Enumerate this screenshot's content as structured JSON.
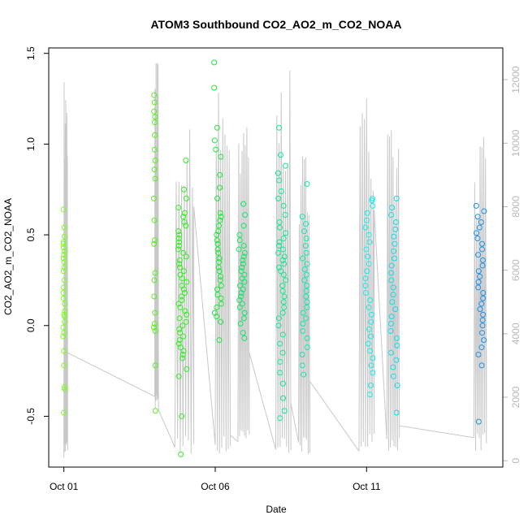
{
  "chart_data": {
    "type": "scatter",
    "title": "ATOM3 Southbound CO2_AO2_m_CO2_NOAA",
    "xlabel": "Date",
    "ylabel": "CO2_AO2_m_CO2_NOAA",
    "xlim": [
      "2016-09-30T12:00",
      "2016-10-15T12:00"
    ],
    "ylim": [
      -0.78,
      1.53
    ],
    "y_ticks": [
      -0.5,
      0.0,
      0.5,
      1.0,
      1.5
    ],
    "x_ticks": [
      {
        "date": "2016-10-01",
        "label": "Oct 01"
      },
      {
        "date": "2016-10-06",
        "label": "Oct 06"
      },
      {
        "date": "2016-10-11",
        "label": "Oct 11"
      }
    ],
    "y2_ticks": [
      0,
      2000,
      4000,
      6000,
      8000,
      10000,
      12000
    ],
    "y2lim": [
      -200,
      13000
    ],
    "y2_color": "#b8b8b8",
    "grid": false,
    "series": [
      {
        "color": "#7cfc20",
        "x_center": "2016-10-01T00:00",
        "spread": 0.06,
        "y": [
          0.64,
          0.54,
          0.49,
          0.46,
          0.45,
          0.43,
          0.41,
          0.39,
          0.37,
          0.35,
          0.32,
          0.3,
          0.25,
          0.21,
          0.18,
          0.15,
          0.12,
          0.08,
          0.06,
          0.05,
          0.02,
          -0.01,
          -0.04,
          -0.06,
          -0.14,
          -0.22,
          -0.34,
          -0.35,
          -0.48
        ]
      },
      {
        "color": "#56f01e",
        "x_center": "2016-10-04T00:00",
        "spread": 0.06,
        "y": [
          1.27,
          1.23,
          1.18,
          1.15,
          1.12,
          1.05,
          0.97,
          0.91,
          0.86,
          0.81,
          0.7,
          0.58,
          0.47,
          0.45,
          0.29,
          0.25,
          0.16,
          0.07,
          0.01,
          -0.01,
          -0.03,
          -0.22,
          -0.47
        ]
      },
      {
        "color": "#33ee22",
        "x_center": "2016-10-04T22:00",
        "spread": 0.28,
        "y": [
          0.91,
          0.75,
          0.7,
          0.65,
          0.62,
          0.6,
          0.57,
          0.55,
          0.52,
          0.5,
          0.48,
          0.46,
          0.44,
          0.42,
          0.4,
          0.38,
          0.36,
          0.34,
          0.32,
          0.3,
          0.28,
          0.26,
          0.24,
          0.22,
          0.2,
          0.18,
          0.16,
          0.14,
          0.12,
          0.1,
          0.08,
          0.06,
          0.04,
          0.02,
          0.0,
          -0.02,
          -0.04,
          -0.06,
          -0.08,
          -0.1,
          -0.12,
          -0.14,
          -0.16,
          -0.18,
          -0.24,
          -0.28,
          -0.5,
          -0.71
        ]
      },
      {
        "color": "#1ee83c",
        "x_center": "2016-10-06T02:00",
        "spread": 0.24,
        "y": [
          1.45,
          1.31,
          1.09,
          1.02,
          0.97,
          0.93,
          0.83,
          0.76,
          0.7,
          0.62,
          0.6,
          0.58,
          0.55,
          0.52,
          0.5,
          0.47,
          0.45,
          0.42,
          0.4,
          0.37,
          0.35,
          0.32,
          0.3,
          0.27,
          0.25,
          0.22,
          0.2,
          0.17,
          0.15,
          0.12,
          0.1,
          0.07,
          0.05,
          0.02,
          -0.08
        ]
      },
      {
        "color": "#14e664",
        "x_center": "2016-10-06T21:00",
        "spread": 0.24,
        "y": [
          0.67,
          0.61,
          0.55,
          0.5,
          0.47,
          0.44,
          0.42,
          0.4,
          0.38,
          0.36,
          0.34,
          0.32,
          0.3,
          0.28,
          0.26,
          0.24,
          0.22,
          0.2,
          0.18,
          0.16,
          0.14,
          0.12,
          0.1,
          0.07,
          0.04,
          0.01,
          -0.04,
          -0.07
        ]
      },
      {
        "color": "#10e890",
        "x_center": "2016-10-08T05:00",
        "spread": 0.26,
        "y": [
          1.09,
          0.94,
          0.88,
          0.84,
          0.8,
          0.74,
          0.7,
          0.66,
          0.61,
          0.57,
          0.54,
          0.51,
          0.48,
          0.46,
          0.44,
          0.42,
          0.4,
          0.38,
          0.36,
          0.34,
          0.32,
          0.3,
          0.28,
          0.25,
          0.22,
          0.19,
          0.16,
          0.13,
          0.1,
          0.07,
          0.04,
          0.0,
          -0.05,
          -0.1,
          -0.15,
          -0.2,
          -0.26,
          -0.32,
          -0.4,
          -0.47,
          -0.51
        ]
      },
      {
        "color": "#10e8b0",
        "x_center": "2016-10-08T23:00",
        "spread": 0.18,
        "y": [
          0.78,
          0.6,
          0.56,
          0.52,
          0.48,
          0.44,
          0.4,
          0.37,
          0.34,
          0.31,
          0.28,
          0.25,
          0.22,
          0.19,
          0.16,
          0.13,
          0.1,
          0.07,
          0.04,
          0.01,
          -0.03,
          -0.07,
          -0.12,
          -0.16,
          -0.22,
          -0.27
        ]
      },
      {
        "color": "#14ecec",
        "x_center": "2016-10-11T02:00",
        "spread": 0.26,
        "y": [
          0.7,
          0.69,
          0.66,
          0.62,
          0.58,
          0.54,
          0.5,
          0.46,
          0.42,
          0.38,
          0.34,
          0.3,
          0.26,
          0.22,
          0.18,
          0.14,
          0.1,
          0.06,
          0.02,
          -0.02,
          -0.06,
          -0.1,
          -0.14,
          -0.18,
          -0.22,
          -0.26,
          -0.33,
          -0.38
        ]
      },
      {
        "color": "#10dcec",
        "x_center": "2016-10-11T22:00",
        "spread": 0.24,
        "y": [
          0.7,
          0.65,
          0.61,
          0.57,
          0.53,
          0.49,
          0.45,
          0.41,
          0.37,
          0.33,
          0.29,
          0.25,
          0.21,
          0.17,
          0.13,
          0.09,
          0.05,
          0.01,
          -0.03,
          -0.07,
          -0.11,
          -0.15,
          -0.19,
          -0.23,
          -0.28,
          -0.33,
          -0.48
        ]
      },
      {
        "color": "#1e90e6",
        "x_center": "2016-10-14T18:00",
        "spread": 0.26,
        "y": [
          0.66,
          0.63,
          0.6,
          0.57,
          0.54,
          0.51,
          0.48,
          0.45,
          0.42,
          0.39,
          0.36,
          0.33,
          0.3,
          0.27,
          0.24,
          0.21,
          0.18,
          0.15,
          0.12,
          0.09,
          0.06,
          0.03,
          0.0,
          -0.04,
          -0.08,
          -0.12,
          -0.16,
          -0.22,
          -0.53
        ]
      }
    ],
    "secondary_series": {
      "color": "#c8c8c8",
      "legs": [
        {
          "x_start": "2016-10-01T00:00",
          "x_end": "2016-10-01T03:00",
          "peak": 12200,
          "base": 100,
          "return_to": 3400
        },
        {
          "x_start": "2016-10-04T00:00",
          "x_end": "2016-10-04T03:00",
          "peak": 12800,
          "base": 1600,
          "return_to": 1600
        },
        {
          "x_start": "2016-10-04T16:00",
          "x_end": "2016-10-05T07:00",
          "peak": 10800,
          "base": 200,
          "return_to": 8000
        },
        {
          "x_start": "2016-10-06T00:00",
          "x_end": "2016-10-06T12:00",
          "peak": 11900,
          "base": 200,
          "return_to": 800
        },
        {
          "x_start": "2016-10-06T18:00",
          "x_end": "2016-10-07T03:00",
          "peak": 11500,
          "base": 400,
          "return_to": 3400
        },
        {
          "x_start": "2016-10-08T00:00",
          "x_end": "2016-10-08T12:00",
          "peak": 12300,
          "base": 200,
          "return_to": 1800
        },
        {
          "x_start": "2016-10-08T18:00",
          "x_end": "2016-10-09T03:00",
          "peak": 9800,
          "base": 200,
          "return_to": 2500
        },
        {
          "x_start": "2016-10-10T18:00",
          "x_end": "2016-10-11T06:00",
          "peak": 11800,
          "base": 300,
          "return_to": 7900
        },
        {
          "x_start": "2016-10-11T16:00",
          "x_end": "2016-10-12T02:00",
          "peak": 10500,
          "base": 300,
          "return_to": 1100
        },
        {
          "x_start": "2016-10-14T13:00",
          "x_end": "2016-10-14T23:00",
          "peak": 10200,
          "base": 300,
          "return_to": 3500
        }
      ]
    }
  }
}
